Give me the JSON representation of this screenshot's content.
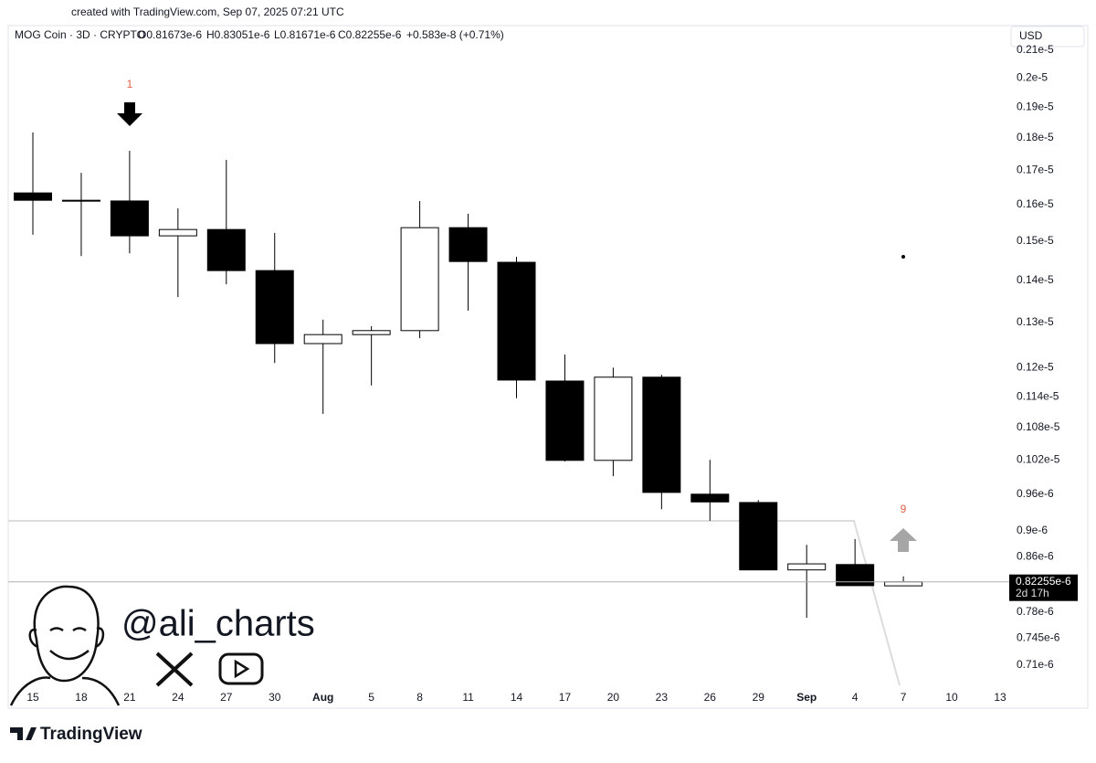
{
  "header": {
    "created": "created with TradingView.com, Sep 07, 2025 07:21 UTC",
    "symbol": "MOG Coin · 3D · CRYPTO",
    "open": "O0.81673e-6",
    "high": "H0.83051e-6",
    "low": "L0.81671e-6",
    "close": "C0.82255e-6",
    "change": "+0.583e-8 (+0.71%)",
    "currency": "USD"
  },
  "chart_data": {
    "type": "candlestick",
    "log_scale": true,
    "grid": false,
    "up_color": "#ffffff",
    "down_color": "#000000",
    "border_color": "#000000",
    "categories": [
      "15",
      "18",
      "21",
      "24",
      "27",
      "30",
      "Aug",
      "5",
      "8",
      "11",
      "14",
      "17",
      "20",
      "23",
      "26",
      "29",
      "Sep",
      "4",
      "7",
      "10",
      "13"
    ],
    "open": [
      1.633e-06,
      1.61e-06,
      1.61e-06,
      1.514e-06,
      1.531e-06,
      1.424e-06,
      1.252e-06,
      1.272e-06,
      1.281e-06,
      1.536e-06,
      1.445e-06,
      1.172e-06,
      1.019e-06,
      1.18e-06,
      9.6e-07,
      9.46e-07,
      8.4e-07,
      8.48e-07,
      8.1673e-07,
      null,
      null
    ],
    "high": [
      1.817e-06,
      1.692e-06,
      1.759e-06,
      1.589e-06,
      1.731e-06,
      1.522e-06,
      1.306e-06,
      1.291e-06,
      1.61e-06,
      1.574e-06,
      1.459e-06,
      1.228e-06,
      1.2e-06,
      1.185e-06,
      1.02e-06,
      9.5e-07,
      8.78e-07,
      8.87e-07,
      8.3051e-07,
      null,
      null
    ],
    "low": [
      1.517e-06,
      1.461e-06,
      1.468e-06,
      1.359e-06,
      1.39e-06,
      1.21e-06,
      1.106e-06,
      1.163e-06,
      1.264e-06,
      1.327e-06,
      1.137e-06,
      1.017e-06,
      9.91e-07,
      9.35e-07,
      9.16e-07,
      8.4e-07,
      7.72e-07,
      8.17e-07,
      8.1671e-07,
      null,
      null
    ],
    "close": [
      1.612e-06,
      1.612e-06,
      1.514e-06,
      1.531e-06,
      1.424e-06,
      1.252e-06,
      1.272e-06,
      1.281e-06,
      1.536e-06,
      1.447e-06,
      1.174e-06,
      1.019e-06,
      1.18e-06,
      9.63e-07,
      9.47e-07,
      8.4e-07,
      8.49e-07,
      8.17e-07,
      8.2255e-07,
      null,
      null
    ],
    "ylim": [
      6.853e-07,
      2.124e-06
    ],
    "yticks": [
      {
        "value": 2.1e-06,
        "label": "0.21e-5"
      },
      {
        "value": 2e-06,
        "label": "0.2e-5"
      },
      {
        "value": 1.9e-06,
        "label": "0.19e-5"
      },
      {
        "value": 1.8e-06,
        "label": "0.18e-5"
      },
      {
        "value": 1.7e-06,
        "label": "0.17e-5"
      },
      {
        "value": 1.6e-06,
        "label": "0.16e-5"
      },
      {
        "value": 1.5e-06,
        "label": "0.15e-5"
      },
      {
        "value": 1.4e-06,
        "label": "0.14e-5"
      },
      {
        "value": 1.3e-06,
        "label": "0.13e-5"
      },
      {
        "value": 1.2e-06,
        "label": "0.12e-5"
      },
      {
        "value": 1.14e-06,
        "label": "0.114e-5"
      },
      {
        "value": 1.08e-06,
        "label": "0.108e-5"
      },
      {
        "value": 1.02e-06,
        "label": "0.102e-5"
      },
      {
        "value": 9.6e-07,
        "label": "0.96e-6"
      },
      {
        "value": 9e-07,
        "label": "0.9e-6"
      },
      {
        "value": 8.6e-07,
        "label": "0.86e-6"
      },
      {
        "value": 7.8e-07,
        "label": "0.78e-6"
      },
      {
        "value": 7.45e-07,
        "label": "0.745e-6"
      },
      {
        "value": 7.1e-07,
        "label": "0.71e-6"
      }
    ],
    "last_price_label": "0.82255e-6",
    "countdown": "2d 17h",
    "annotations": [
      "1",
      "9"
    ]
  },
  "watermark": {
    "handle": "@ali_charts"
  },
  "footer": {
    "brand": "TradingView"
  }
}
